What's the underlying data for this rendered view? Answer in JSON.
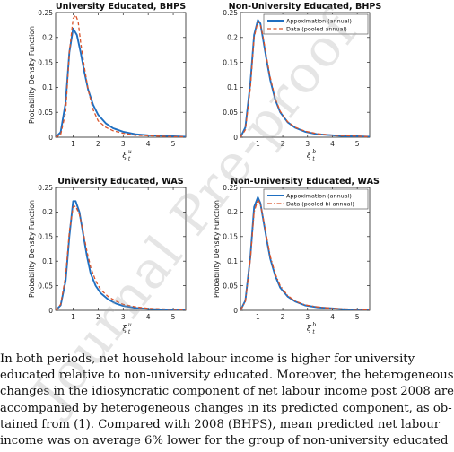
{
  "colors": {
    "approx": "#1f6fc1",
    "data": "#d9532a",
    "axis": "#222222"
  },
  "panels": [
    {
      "title": "University Educated, BHPS",
      "ylabel": "Probability Density Function",
      "xlabel_base": "ξ",
      "xlabel_sup": "u",
      "xlabel_sub": "t",
      "legend": null
    },
    {
      "title": "Non-University Educated, BHPS",
      "ylabel": "",
      "xlabel_base": "ξ",
      "xlabel_sup": "b",
      "xlabel_sub": "t",
      "legend": [
        "Appoximation (annual)",
        "Data (pooled annual)"
      ]
    },
    {
      "title": "University Educated, WAS",
      "ylabel": "Probability Density Function",
      "xlabel_base": "ξ",
      "xlabel_sup": "u",
      "xlabel_sub": "t",
      "legend": null
    },
    {
      "title": "Non-University Educated, WAS",
      "ylabel": "Probability Density Function",
      "xlabel_base": "ξ",
      "xlabel_sup": "b",
      "xlabel_sub": "t",
      "legend": [
        "Appoximation (annual)",
        "Data (pooled bi-annual)"
      ]
    }
  ],
  "chart_data": [
    {
      "type": "line",
      "title": "University Educated, BHPS",
      "ylabel": "Probability Density Function",
      "xlim": [
        0.3,
        5.5
      ],
      "ylim": [
        0,
        0.25
      ],
      "xticks": [
        1,
        2,
        3,
        4,
        5
      ],
      "yticks": [
        0,
        0.05,
        0.1,
        0.15,
        0.2,
        0.25
      ],
      "series": [
        {
          "style": "solid",
          "x": [
            0.3,
            0.5,
            0.7,
            0.85,
            1.0,
            1.15,
            1.3,
            1.45,
            1.6,
            1.8,
            2.0,
            2.3,
            2.6,
            3.0,
            3.5,
            4.0,
            4.5,
            5.0,
            5.5
          ],
          "y": [
            0,
            0.01,
            0.07,
            0.17,
            0.218,
            0.205,
            0.17,
            0.13,
            0.095,
            0.065,
            0.045,
            0.028,
            0.018,
            0.011,
            0.006,
            0.004,
            0.003,
            0.002,
            0.001
          ]
        },
        {
          "style": "dashed",
          "x": [
            0.3,
            0.5,
            0.7,
            0.85,
            1.0,
            1.1,
            1.2,
            1.3,
            1.45,
            1.6,
            1.8,
            2.0,
            2.3,
            2.6,
            3.0,
            3.5,
            4.0,
            4.5,
            5.0,
            5.5
          ],
          "y": [
            0,
            0.005,
            0.05,
            0.17,
            0.238,
            0.245,
            0.232,
            0.19,
            0.14,
            0.095,
            0.055,
            0.033,
            0.02,
            0.013,
            0.008,
            0.004,
            0.003,
            0.002,
            0.001,
            0.001
          ]
        }
      ]
    },
    {
      "type": "line",
      "title": "Non-University Educated, BHPS",
      "xlim": [
        0.3,
        5.5
      ],
      "ylim": [
        0,
        0.25
      ],
      "xticks": [
        1,
        2,
        3,
        4,
        5
      ],
      "yticks": [
        0,
        0.05,
        0.1,
        0.15,
        0.2,
        0.25
      ],
      "legend": "top-right",
      "series": [
        {
          "name": "Appoximation (annual)",
          "style": "solid",
          "x": [
            0.3,
            0.5,
            0.7,
            0.85,
            1.0,
            1.1,
            1.2,
            1.35,
            1.5,
            1.7,
            1.9,
            2.2,
            2.5,
            2.9,
            3.4,
            4.0,
            4.5,
            5.0,
            5.5
          ],
          "y": [
            0,
            0.02,
            0.11,
            0.205,
            0.235,
            0.228,
            0.2,
            0.155,
            0.115,
            0.075,
            0.05,
            0.03,
            0.019,
            0.011,
            0.006,
            0.004,
            0.002,
            0.002,
            0.001
          ]
        },
        {
          "name": "Data (pooled annual)",
          "style": "dashed",
          "x": [
            0.3,
            0.5,
            0.7,
            0.85,
            1.0,
            1.1,
            1.2,
            1.35,
            1.5,
            1.7,
            1.9,
            2.2,
            2.5,
            2.9,
            3.4,
            4.0,
            4.5,
            5.0,
            5.5
          ],
          "y": [
            0,
            0.015,
            0.1,
            0.2,
            0.232,
            0.225,
            0.205,
            0.16,
            0.12,
            0.078,
            0.052,
            0.031,
            0.02,
            0.012,
            0.007,
            0.004,
            0.003,
            0.002,
            0.001
          ]
        }
      ]
    },
    {
      "type": "line",
      "title": "University Educated, WAS",
      "ylabel": "Probability Density Function",
      "xlim": [
        0.3,
        5.5
      ],
      "ylim": [
        0,
        0.25
      ],
      "xticks": [
        1,
        2,
        3,
        4,
        5
      ],
      "yticks": [
        0,
        0.05,
        0.1,
        0.15,
        0.2,
        0.25
      ],
      "series": [
        {
          "style": "solid",
          "x": [
            0.3,
            0.5,
            0.7,
            0.85,
            1.0,
            1.1,
            1.25,
            1.4,
            1.55,
            1.7,
            1.9,
            2.1,
            2.4,
            2.7,
            3.0,
            3.5,
            4.0,
            4.5,
            5.0,
            5.5
          ],
          "y": [
            0,
            0.01,
            0.06,
            0.15,
            0.222,
            0.222,
            0.2,
            0.155,
            0.11,
            0.075,
            0.05,
            0.035,
            0.022,
            0.014,
            0.009,
            0.005,
            0.003,
            0.002,
            0.001,
            0.001
          ]
        },
        {
          "style": "dashed",
          "x": [
            0.3,
            0.5,
            0.7,
            0.85,
            1.0,
            1.1,
            1.25,
            1.4,
            1.55,
            1.7,
            1.9,
            2.1,
            2.4,
            2.7,
            3.0,
            3.5,
            4.0,
            4.5,
            5.0,
            5.5
          ],
          "y": [
            0,
            0.012,
            0.07,
            0.16,
            0.21,
            0.212,
            0.195,
            0.16,
            0.12,
            0.088,
            0.06,
            0.042,
            0.028,
            0.019,
            0.012,
            0.007,
            0.004,
            0.003,
            0.002,
            0.001
          ]
        }
      ]
    },
    {
      "type": "line",
      "title": "Non-University Educated, WAS",
      "ylabel": "Probability Density Function",
      "xlim": [
        0.3,
        5.5
      ],
      "ylim": [
        0,
        0.25
      ],
      "xticks": [
        1,
        2,
        3,
        4,
        5
      ],
      "yticks": [
        0,
        0.05,
        0.1,
        0.15,
        0.2,
        0.25
      ],
      "legend": "top-right",
      "series": [
        {
          "name": "Appoximation (annual)",
          "style": "solid",
          "x": [
            0.3,
            0.5,
            0.7,
            0.85,
            1.0,
            1.1,
            1.2,
            1.35,
            1.5,
            1.7,
            1.9,
            2.2,
            2.5,
            2.9,
            3.4,
            4.0,
            4.5,
            5.0,
            5.5
          ],
          "y": [
            0,
            0.02,
            0.11,
            0.21,
            0.23,
            0.218,
            0.19,
            0.145,
            0.105,
            0.07,
            0.046,
            0.028,
            0.018,
            0.01,
            0.006,
            0.004,
            0.002,
            0.002,
            0.001
          ]
        },
        {
          "name": "Data (pooled bi-annual)",
          "style": "dashdot",
          "x": [
            0.3,
            0.5,
            0.7,
            0.85,
            1.0,
            1.1,
            1.2,
            1.35,
            1.5,
            1.7,
            1.9,
            2.2,
            2.5,
            2.9,
            3.4,
            4.0,
            4.5,
            5.0,
            5.5
          ],
          "y": [
            0,
            0.018,
            0.105,
            0.2,
            0.225,
            0.216,
            0.192,
            0.15,
            0.11,
            0.074,
            0.05,
            0.03,
            0.019,
            0.011,
            0.007,
            0.004,
            0.003,
            0.002,
            0.001
          ]
        }
      ]
    }
  ],
  "body_lines": [
    "In both periods, net household labour income is higher for university",
    "educated relative to non-university educated. Moreover, the heterogeneous",
    "changes in the idiosyncratic component of net labour income post 2008 are",
    "accompanied by heterogeneous changes in its predicted component, as ob-",
    "tained from (1). Compared with 2008 (BHPS), mean predicted net labour",
    "income was on average 6% lower for the group of non-university educated"
  ],
  "watermark": "Journal Pre-proof"
}
